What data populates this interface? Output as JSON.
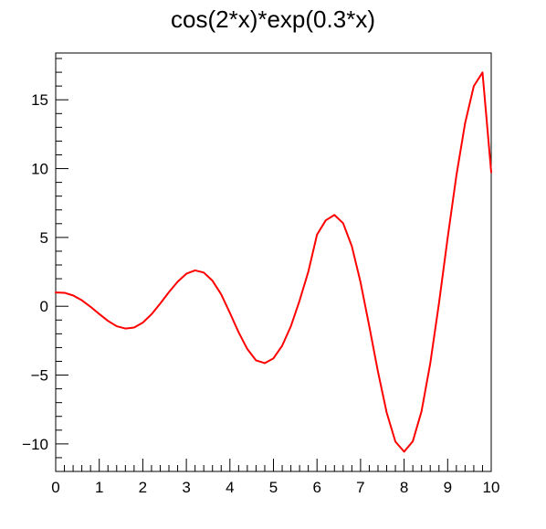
{
  "chart_data": {
    "type": "line",
    "title": "cos(2*x)*exp(0.3*x)",
    "xlabel": "",
    "ylabel": "",
    "xlim": [
      0,
      10
    ],
    "ylim": [
      -12,
      18.4
    ],
    "x_ticks": [
      "0",
      "1",
      "2",
      "3",
      "4",
      "5",
      "6",
      "7",
      "8",
      "9",
      "10"
    ],
    "y_ticks": [
      "−10",
      "−5",
      "0",
      "5",
      "10",
      "15"
    ],
    "grid": false,
    "legend": "none",
    "series": [
      {
        "color": "#ff0000",
        "x": [
          0,
          0.2,
          0.4,
          0.6,
          0.8,
          1.0,
          1.2,
          1.4,
          1.6,
          1.8,
          2.0,
          2.2,
          2.4,
          2.6,
          2.8,
          3.0,
          3.2,
          3.4,
          3.6,
          3.8,
          4.0,
          4.2,
          4.4,
          4.6,
          4.8,
          5.0,
          5.2,
          5.4,
          5.6,
          5.8,
          6.0,
          6.2,
          6.4,
          6.6,
          6.8,
          7.0,
          7.2,
          7.4,
          7.6,
          7.8,
          8.0,
          8.2,
          8.4,
          8.6,
          8.8,
          9.0,
          9.2,
          9.4,
          9.6,
          9.8,
          10.0
        ],
        "y": [
          1.0,
          0.979,
          0.785,
          0.434,
          -0.037,
          -0.562,
          -1.061,
          -1.449,
          -1.617,
          -1.545,
          -1.191,
          -0.581,
          0.194,
          1.024,
          1.781,
          2.365,
          2.605,
          2.448,
          1.854,
          0.863,
          -0.484,
          -1.889,
          -3.108,
          -3.934,
          -4.133,
          -3.782,
          -2.866,
          -1.453,
          0.411,
          2.508,
          5.201,
          6.242,
          6.633,
          6.032,
          4.357,
          1.738,
          -1.449,
          -4.764,
          -7.726,
          -9.834,
          -10.565,
          -9.807,
          -7.632,
          -4.158,
          0.209,
          4.975,
          9.491,
          13.297,
          15.993,
          16.987,
          9.729
        ]
      }
    ]
  }
}
